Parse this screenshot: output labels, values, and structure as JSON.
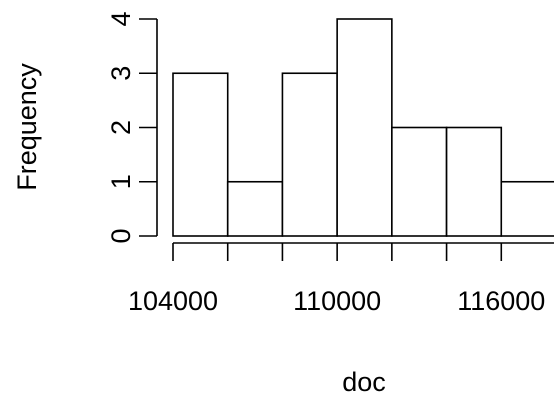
{
  "chart_data": {
    "type": "bar",
    "title": "",
    "xlabel": "doc",
    "ylabel": "Frequency",
    "bins": [
      {
        "start": 104000,
        "end": 106000,
        "count": 3
      },
      {
        "start": 106000,
        "end": 108000,
        "count": 1
      },
      {
        "start": 108000,
        "end": 110000,
        "count": 3
      },
      {
        "start": 110000,
        "end": 112000,
        "count": 4
      },
      {
        "start": 112000,
        "end": 114000,
        "count": 2
      },
      {
        "start": 114000,
        "end": 116000,
        "count": 2
      },
      {
        "start": 116000,
        "end": 118000,
        "count": 1
      }
    ],
    "categories": [
      "104000-106000",
      "106000-108000",
      "108000-110000",
      "110000-112000",
      "112000-114000",
      "114000-116000",
      "116000-118000"
    ],
    "values": [
      3,
      1,
      3,
      4,
      2,
      2,
      1
    ],
    "xlim": [
      104000,
      118000
    ],
    "ylim": [
      0,
      4
    ],
    "x_ticks": [
      104000,
      106000,
      108000,
      110000,
      112000,
      114000,
      116000,
      118000
    ],
    "x_tick_labels": [
      "104000",
      "110000",
      "116000"
    ],
    "y_ticks": [
      0,
      1,
      2,
      3,
      4
    ],
    "y_tick_labels": [
      "0",
      "1",
      "2",
      "3",
      "4"
    ],
    "grid": false,
    "legend": "none",
    "bar_fill": "#ffffff",
    "stroke_color": "#000000"
  }
}
